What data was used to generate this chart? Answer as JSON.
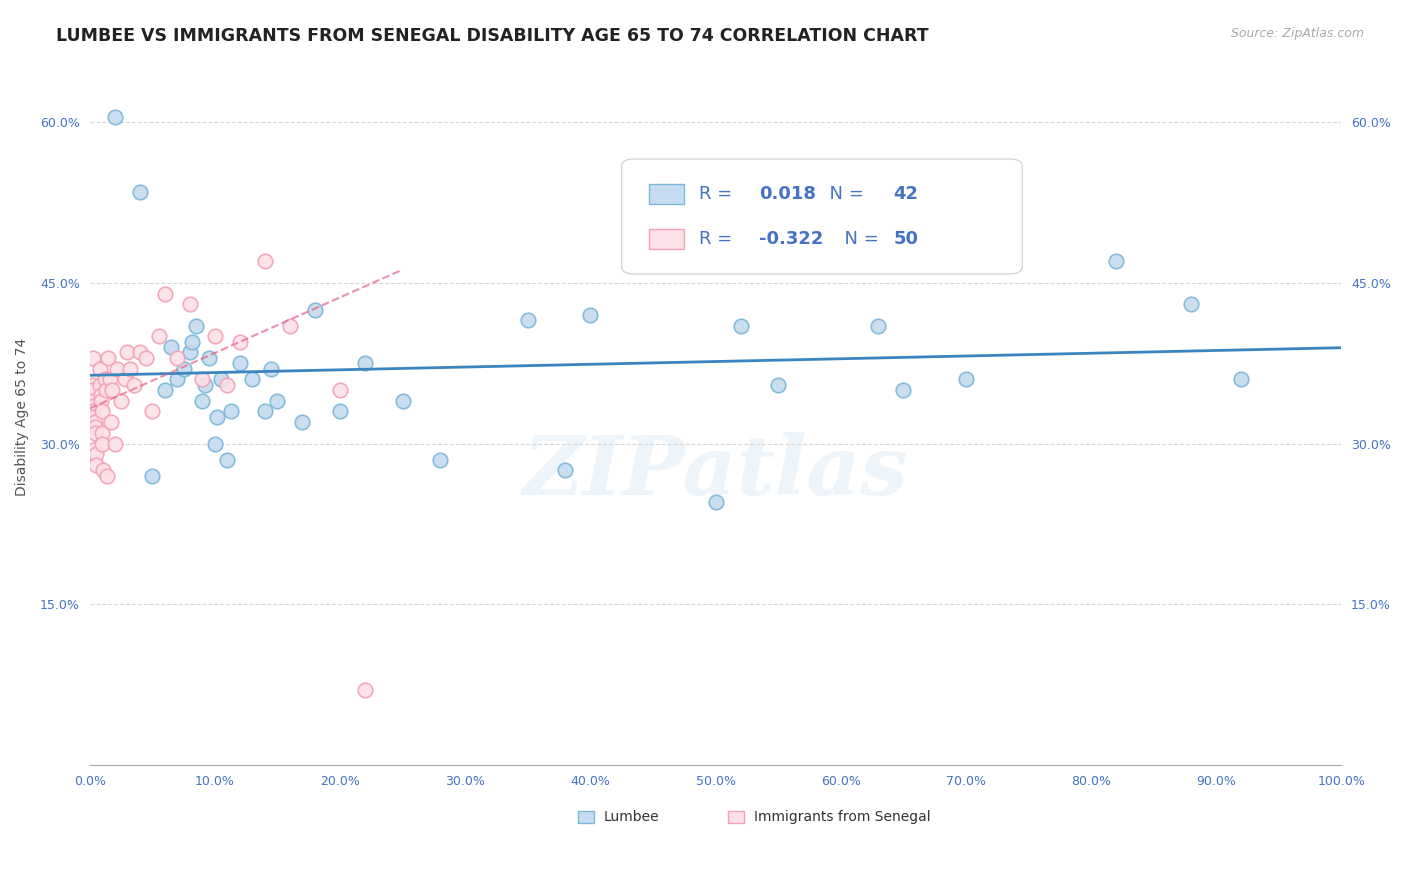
{
  "title": "LUMBEE VS IMMIGRANTS FROM SENEGAL DISABILITY AGE 65 TO 74 CORRELATION CHART",
  "source_text": "Source: ZipAtlas.com",
  "ylabel": "Disability Age 65 to 74",
  "xlim": [
    0.0,
    1.0
  ],
  "ylim": [
    0.0,
    0.65
  ],
  "xticks": [
    0.0,
    0.1,
    0.2,
    0.3,
    0.4,
    0.5,
    0.6,
    0.7,
    0.8,
    0.9,
    1.0
  ],
  "xtick_labels": [
    "0.0%",
    "10.0%",
    "20.0%",
    "30.0%",
    "40.0%",
    "50.0%",
    "60.0%",
    "70.0%",
    "80.0%",
    "90.0%",
    "100.0%"
  ],
  "yticks": [
    0.0,
    0.15,
    0.3,
    0.45,
    0.6
  ],
  "ytick_labels": [
    "",
    "15.0%",
    "30.0%",
    "45.0%",
    "60.0%"
  ],
  "lumbee_R": "0.018",
  "lumbee_N": "42",
  "senegal_R": "-0.322",
  "senegal_N": "50",
  "lumbee_color": "#7ab8d9",
  "lumbee_fill": "#c6dbef",
  "senegal_color": "#f4a0b5",
  "senegal_fill": "#fce0e8",
  "trend_lumbee_color": "#3a85c0",
  "trend_senegal_color": "#e8608a",
  "text_blue": "#4472c4",
  "background_color": "#ffffff",
  "grid_color": "#cccccc",
  "watermark": "ZIPatlas",
  "lumbee_x": [
    0.02,
    0.04,
    0.05,
    0.06,
    0.065,
    0.07,
    0.075,
    0.08,
    0.082,
    0.085,
    0.09,
    0.092,
    0.095,
    0.1,
    0.102,
    0.105,
    0.11,
    0.113,
    0.12,
    0.13,
    0.14,
    0.145,
    0.15,
    0.17,
    0.18,
    0.2,
    0.22,
    0.25,
    0.28,
    0.35,
    0.38,
    0.4,
    0.5,
    0.52,
    0.55,
    0.6,
    0.63,
    0.65,
    0.7,
    0.82,
    0.88,
    0.92
  ],
  "lumbee_y": [
    0.605,
    0.535,
    0.27,
    0.35,
    0.39,
    0.36,
    0.37,
    0.385,
    0.395,
    0.41,
    0.34,
    0.355,
    0.38,
    0.3,
    0.325,
    0.36,
    0.285,
    0.33,
    0.375,
    0.36,
    0.33,
    0.37,
    0.34,
    0.32,
    0.425,
    0.33,
    0.375,
    0.34,
    0.285,
    0.415,
    0.275,
    0.42,
    0.245,
    0.41,
    0.355,
    0.47,
    0.41,
    0.35,
    0.36,
    0.47,
    0.43,
    0.36
  ],
  "senegal_x": [
    0.003,
    0.003,
    0.003,
    0.003,
    0.003,
    0.003,
    0.003,
    0.004,
    0.004,
    0.004,
    0.004,
    0.005,
    0.005,
    0.008,
    0.008,
    0.009,
    0.009,
    0.01,
    0.01,
    0.01,
    0.011,
    0.012,
    0.013,
    0.014,
    0.015,
    0.016,
    0.017,
    0.018,
    0.02,
    0.022,
    0.025,
    0.028,
    0.03,
    0.032,
    0.035,
    0.04,
    0.045,
    0.05,
    0.055,
    0.06,
    0.07,
    0.08,
    0.09,
    0.1,
    0.11,
    0.12,
    0.14,
    0.16,
    0.2,
    0.22
  ],
  "senegal_y": [
    0.38,
    0.355,
    0.35,
    0.34,
    0.335,
    0.33,
    0.325,
    0.32,
    0.315,
    0.31,
    0.295,
    0.29,
    0.28,
    0.37,
    0.355,
    0.345,
    0.34,
    0.33,
    0.31,
    0.3,
    0.275,
    0.36,
    0.35,
    0.27,
    0.38,
    0.36,
    0.32,
    0.35,
    0.3,
    0.37,
    0.34,
    0.36,
    0.385,
    0.37,
    0.355,
    0.385,
    0.38,
    0.33,
    0.4,
    0.44,
    0.38,
    0.43,
    0.36,
    0.4,
    0.355,
    0.395,
    0.47,
    0.41,
    0.35,
    0.07
  ]
}
